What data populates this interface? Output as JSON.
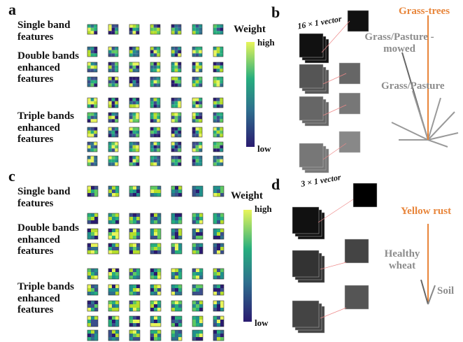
{
  "panel_a": {
    "label": "a",
    "rows": [
      "Single band features",
      "Double bands enhanced features",
      "Triple bands enhanced features"
    ],
    "colorbar": {
      "title": "Weight",
      "high": "high",
      "low": "low"
    }
  },
  "panel_b": {
    "label": "b",
    "vector": "16 × 1 vector",
    "classes": [
      "Grass-trees",
      "Grass/Pasture -mowed",
      "Grass/Pasture"
    ]
  },
  "panel_c": {
    "label": "c",
    "rows": [
      "Single band features",
      "Double bands enhanced features",
      "Triple bands enhanced features"
    ],
    "colorbar": {
      "title": "Weight",
      "high": "high",
      "low": "low"
    }
  },
  "panel_d": {
    "label": "d",
    "vector": "3 × 1 vector",
    "classes": [
      "Yellow rust",
      "Healthy wheat",
      "Soil"
    ]
  }
}
